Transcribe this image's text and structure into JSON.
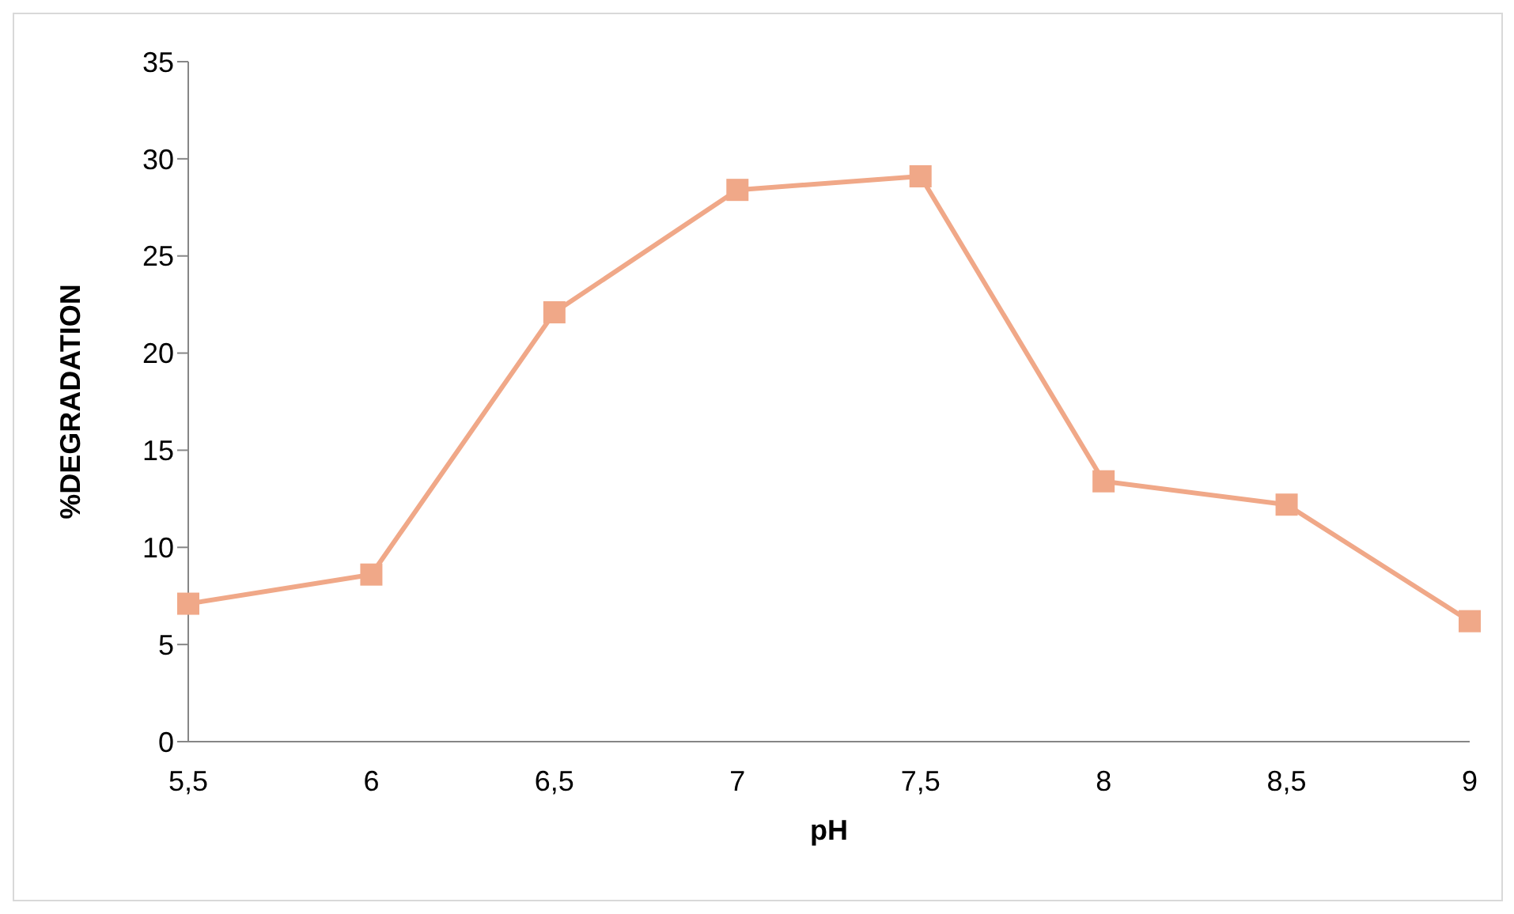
{
  "chart_data": {
    "type": "line",
    "xlabel": "pH",
    "ylabel": "%DEGRADATION",
    "categories": [
      "5,5",
      "6",
      "6,5",
      "7",
      "7,5",
      "8",
      "8,5",
      "9"
    ],
    "series": [
      {
        "color": "#f0a888",
        "values": [
          7.1,
          8.6,
          22.1,
          28.4,
          29.1,
          13.4,
          12.2,
          6.2
        ]
      }
    ],
    "ylim": [
      0,
      35
    ],
    "yticks": [
      0,
      5,
      10,
      15,
      20,
      25,
      30,
      35
    ],
    "grid": false,
    "legend": false,
    "marker": "square",
    "line_style": "solid"
  }
}
